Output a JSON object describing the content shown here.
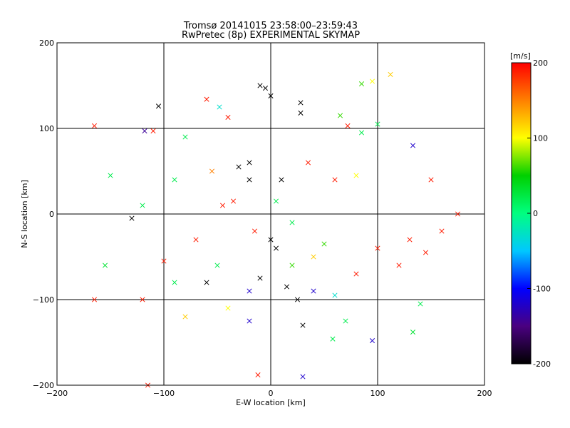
{
  "chart_data": {
    "type": "scatter",
    "title": "Tromsø 20141015 23:58:00–23:59:43",
    "subtitle": "RwPretec (8p) EXPERIMENTAL SKYMAP",
    "xlabel": "E-W location [km]",
    "ylabel": "N-S location [km]",
    "xlim": [
      -200,
      200
    ],
    "ylim": [
      -200,
      200
    ],
    "x_ticks": [
      -200,
      -100,
      0,
      100,
      200
    ],
    "y_ticks": [
      -200,
      -100,
      0,
      100,
      200
    ],
    "grid": true,
    "colorbar": {
      "label": "[m/s]",
      "range": [
        -200,
        200
      ],
      "ticks": [
        -200,
        -100,
        0,
        100,
        200
      ],
      "colors": [
        "#000000",
        "#4a0080",
        "#0000ff",
        "#00c8ff",
        "#00ff80",
        "#00d000",
        "#ffff00",
        "#ff8000",
        "#ff0000"
      ]
    },
    "series": [
      {
        "marker": "cross",
        "points": [
          {
            "x": -165,
            "y": 103,
            "v": 190
          },
          {
            "x": -105,
            "y": 126,
            "v": -200
          },
          {
            "x": -118,
            "y": 97,
            "v": -140
          },
          {
            "x": -110,
            "y": 97,
            "v": 190
          },
          {
            "x": -60,
            "y": 134,
            "v": 190
          },
          {
            "x": -48,
            "y": 125,
            "v": -30
          },
          {
            "x": -40,
            "y": 113,
            "v": 190
          },
          {
            "x": -10,
            "y": 150,
            "v": -200
          },
          {
            "x": -5,
            "y": 147,
            "v": -200
          },
          {
            "x": 0,
            "y": 138,
            "v": -200
          },
          {
            "x": 28,
            "y": 130,
            "v": -200
          },
          {
            "x": 28,
            "y": 118,
            "v": -200
          },
          {
            "x": 65,
            "y": 115,
            "v": 60
          },
          {
            "x": 85,
            "y": 152,
            "v": 60
          },
          {
            "x": 95,
            "y": 155,
            "v": 100
          },
          {
            "x": 112,
            "y": 163,
            "v": 120
          },
          {
            "x": 100,
            "y": 105,
            "v": 20
          },
          {
            "x": 72,
            "y": 103,
            "v": 190
          },
          {
            "x": 85,
            "y": 95,
            "v": 20
          },
          {
            "x": 133,
            "y": 80,
            "v": -120
          },
          {
            "x": 150,
            "y": 40,
            "v": 190
          },
          {
            "x": -150,
            "y": 45,
            "v": 20
          },
          {
            "x": -120,
            "y": 10,
            "v": 20
          },
          {
            "x": -130,
            "y": -5,
            "v": -200
          },
          {
            "x": -155,
            "y": -60,
            "v": 30
          },
          {
            "x": -165,
            "y": -100,
            "v": 190
          },
          {
            "x": -120,
            "y": -100,
            "v": 190
          },
          {
            "x": -115,
            "y": -200,
            "v": 190
          },
          {
            "x": -12,
            "y": -188,
            "v": 190
          },
          {
            "x": 30,
            "y": -190,
            "v": -120
          },
          {
            "x": 58,
            "y": -146,
            "v": 20
          },
          {
            "x": 95,
            "y": -148,
            "v": -120
          },
          {
            "x": 133,
            "y": -138,
            "v": 30
          },
          {
            "x": 140,
            "y": -105,
            "v": 20
          },
          {
            "x": -80,
            "y": 90,
            "v": 20
          },
          {
            "x": -55,
            "y": 50,
            "v": 150
          },
          {
            "x": -30,
            "y": 55,
            "v": -200
          },
          {
            "x": -20,
            "y": 60,
            "v": -200
          },
          {
            "x": 10,
            "y": 40,
            "v": -200
          },
          {
            "x": 35,
            "y": 60,
            "v": 190
          },
          {
            "x": 80,
            "y": 45,
            "v": 100
          },
          {
            "x": -45,
            "y": 10,
            "v": 190
          },
          {
            "x": -35,
            "y": 15,
            "v": 190
          },
          {
            "x": 0,
            "y": -30,
            "v": -200
          },
          {
            "x": 5,
            "y": -40,
            "v": -200
          },
          {
            "x": -10,
            "y": -75,
            "v": -200
          },
          {
            "x": 15,
            "y": -85,
            "v": -200
          },
          {
            "x": 25,
            "y": -100,
            "v": -200
          },
          {
            "x": -20,
            "y": -90,
            "v": -120
          },
          {
            "x": 40,
            "y": -90,
            "v": -120
          },
          {
            "x": 60,
            "y": -95,
            "v": -30
          },
          {
            "x": -60,
            "y": -80,
            "v": -200
          },
          {
            "x": -50,
            "y": -60,
            "v": 20
          },
          {
            "x": 100,
            "y": -40,
            "v": 190
          },
          {
            "x": 130,
            "y": -30,
            "v": 190
          },
          {
            "x": 160,
            "y": -20,
            "v": 190
          },
          {
            "x": 145,
            "y": -45,
            "v": 190
          },
          {
            "x": 175,
            "y": 0,
            "v": 190
          },
          {
            "x": 120,
            "y": -60,
            "v": 190
          },
          {
            "x": 80,
            "y": -70,
            "v": 190
          },
          {
            "x": -100,
            "y": -55,
            "v": 190
          },
          {
            "x": -90,
            "y": -80,
            "v": 20
          },
          {
            "x": -70,
            "y": -30,
            "v": 190
          },
          {
            "x": 40,
            "y": -50,
            "v": 120
          },
          {
            "x": 20,
            "y": -60,
            "v": 60
          },
          {
            "x": -40,
            "y": -110,
            "v": 100
          },
          {
            "x": -20,
            "y": -125,
            "v": -120
          },
          {
            "x": 30,
            "y": -130,
            "v": -200
          },
          {
            "x": 70,
            "y": -125,
            "v": 20
          },
          {
            "x": -80,
            "y": -120,
            "v": 120
          },
          {
            "x": 5,
            "y": 15,
            "v": 20
          },
          {
            "x": 20,
            "y": -10,
            "v": 20
          },
          {
            "x": 50,
            "y": -35,
            "v": 60
          },
          {
            "x": -15,
            "y": -20,
            "v": 190
          },
          {
            "x": 60,
            "y": 40,
            "v": 190
          },
          {
            "x": -90,
            "y": 40,
            "v": 20
          },
          {
            "x": -20,
            "y": 40,
            "v": -200
          }
        ]
      }
    ]
  }
}
